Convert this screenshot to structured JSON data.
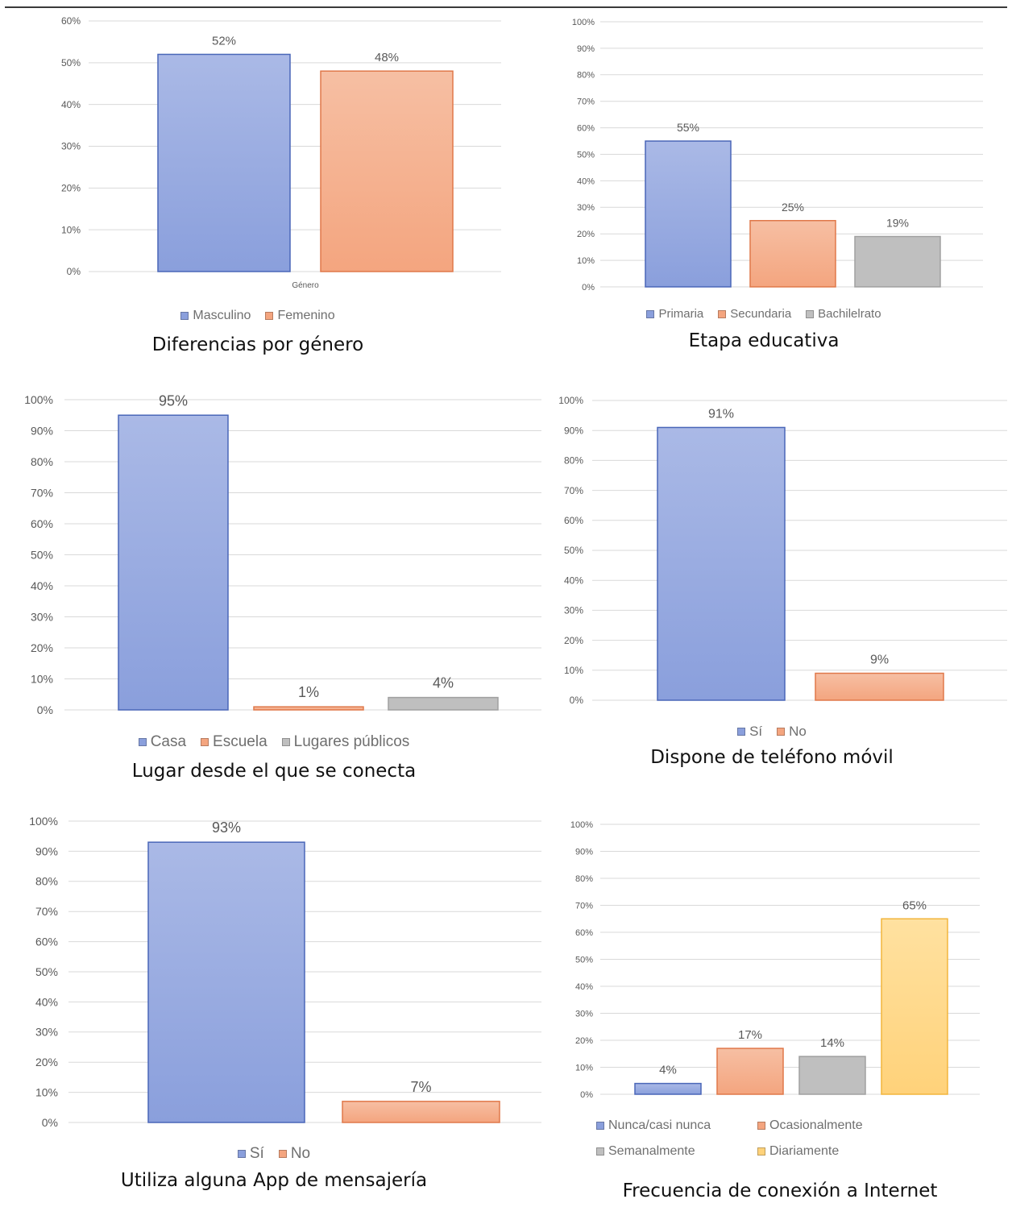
{
  "colors": {
    "blue": "#8a9fdc",
    "blue_top": "#aab9e6",
    "blue_edge": "#4a67b8",
    "orange": "#f4a57f",
    "orange_top": "#f6bfa3",
    "orange_edge": "#e0784a",
    "gray": "#bfbfbf",
    "gray_edge": "#a0a0a0",
    "yellow": "#ffd27a",
    "yellow_top": "#ffe1a0",
    "yellow_edge": "#f2b53c",
    "grid": "#d9d9d9",
    "tick_text": "#595959",
    "label_text": "#595959"
  },
  "chart_data": [
    {
      "type": "bar",
      "title": "Diferencias por género",
      "xlabel": "Género",
      "categories": [
        "Masculino",
        "Femenino"
      ],
      "values": [
        52,
        48
      ],
      "data_labels": [
        "52%",
        "48%"
      ],
      "colors": [
        "blue",
        "orange"
      ],
      "ylim": [
        0,
        60
      ],
      "yticks": [
        "0%",
        "10%",
        "20%",
        "30%",
        "40%",
        "50%",
        "60%"
      ],
      "legend": [
        "Masculino",
        "Femenino"
      ],
      "grid": true,
      "legend_position": "bottom"
    },
    {
      "type": "bar",
      "title": "Etapa educativa",
      "xlabel": "",
      "categories": [
        "Primaria",
        "Secundaria",
        "Bachilelrato"
      ],
      "values": [
        55,
        25,
        19
      ],
      "data_labels": [
        "55%",
        "25%",
        "19%"
      ],
      "colors": [
        "blue",
        "orange",
        "gray"
      ],
      "ylim": [
        0,
        100
      ],
      "yticks": [
        "0%",
        "10%",
        "20%",
        "30%",
        "40%",
        "50%",
        "60%",
        "70%",
        "80%",
        "90%",
        "100%"
      ],
      "legend": [
        "Primaria",
        "Secundaria",
        "Bachilelrato"
      ],
      "grid": true,
      "legend_position": "bottom"
    },
    {
      "type": "bar",
      "title": "Lugar desde el que se conecta",
      "xlabel": "",
      "categories": [
        "Casa",
        "Escuela",
        "Lugares públicos"
      ],
      "values": [
        95,
        1,
        4
      ],
      "data_labels": [
        "95%",
        "1%",
        "4%"
      ],
      "colors": [
        "blue",
        "orange",
        "gray"
      ],
      "ylim": [
        0,
        100
      ],
      "yticks": [
        "0%",
        "10%",
        "20%",
        "30%",
        "40%",
        "50%",
        "60%",
        "70%",
        "80%",
        "90%",
        "100%"
      ],
      "legend": [
        "Casa",
        "Escuela",
        "Lugares públicos"
      ],
      "grid": true,
      "legend_position": "bottom"
    },
    {
      "type": "bar",
      "title": "Dispone de teléfono móvil",
      "xlabel": "",
      "categories": [
        "Sí",
        "No"
      ],
      "values": [
        91,
        9
      ],
      "data_labels": [
        "91%",
        "9%"
      ],
      "colors": [
        "blue",
        "orange"
      ],
      "ylim": [
        0,
        100
      ],
      "yticks": [
        "0%",
        "10%",
        "20%",
        "30%",
        "40%",
        "50%",
        "60%",
        "70%",
        "80%",
        "90%",
        "100%"
      ],
      "legend": [
        "Sí",
        "No"
      ],
      "grid": true,
      "legend_position": "bottom"
    },
    {
      "type": "bar",
      "title": "Utiliza alguna App de mensajería",
      "xlabel": "",
      "categories": [
        "Sí",
        "No"
      ],
      "values": [
        93,
        7
      ],
      "data_labels": [
        "93%",
        "7%"
      ],
      "colors": [
        "blue",
        "orange"
      ],
      "ylim": [
        0,
        100
      ],
      "yticks": [
        "0%",
        "10%",
        "20%",
        "30%",
        "40%",
        "50%",
        "60%",
        "70%",
        "80%",
        "90%",
        "100%"
      ],
      "legend": [
        "Sí",
        "No"
      ],
      "grid": true,
      "legend_position": "bottom"
    },
    {
      "type": "bar",
      "title": "Frecuencia de conexión a Internet",
      "xlabel": "",
      "categories": [
        "Nunca/casi nunca",
        "Ocasionalmente",
        "Semanalmente",
        "Diariamente"
      ],
      "values": [
        4,
        17,
        14,
        65
      ],
      "data_labels": [
        "4%",
        "17%",
        "14%",
        "65%"
      ],
      "colors": [
        "blue",
        "orange",
        "gray",
        "yellow"
      ],
      "ylim": [
        0,
        100
      ],
      "yticks": [
        "0%",
        "10%",
        "20%",
        "30%",
        "40%",
        "50%",
        "60%",
        "70%",
        "80%",
        "90%",
        "100%"
      ],
      "legend": [
        "Nunca/casi nunca",
        "Ocasionalmente",
        "Semanalmente",
        "Diariamente"
      ],
      "grid": true,
      "legend_position": "bottom"
    }
  ]
}
